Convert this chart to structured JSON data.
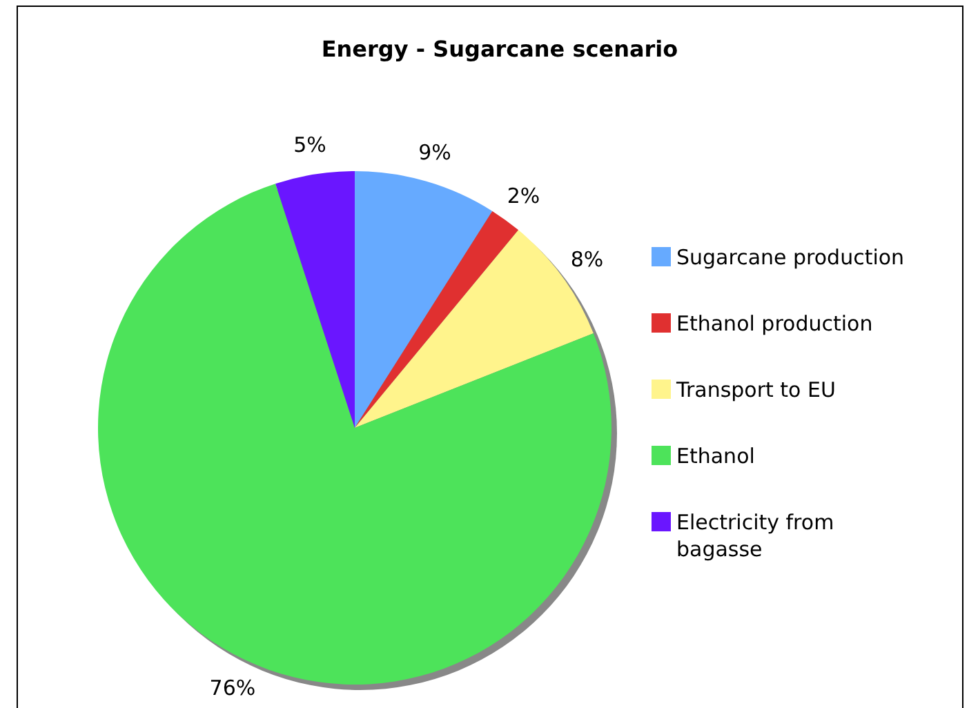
{
  "chart_data": {
    "type": "pie",
    "title": "Energy - Sugarcane scenario",
    "categories": [
      "Sugarcane production",
      "Ethanol production",
      "Transport to EU",
      "Ethanol",
      "Electricity from bagasse"
    ],
    "values": [
      9,
      2,
      8,
      76,
      5
    ],
    "colors": [
      "#66aaff",
      "#e03030",
      "#fff48c",
      "#4de35a",
      "#6a16ff"
    ],
    "value_labels": [
      "9%",
      "2%",
      "8%",
      "76%",
      "5%"
    ],
    "legend": "right"
  }
}
